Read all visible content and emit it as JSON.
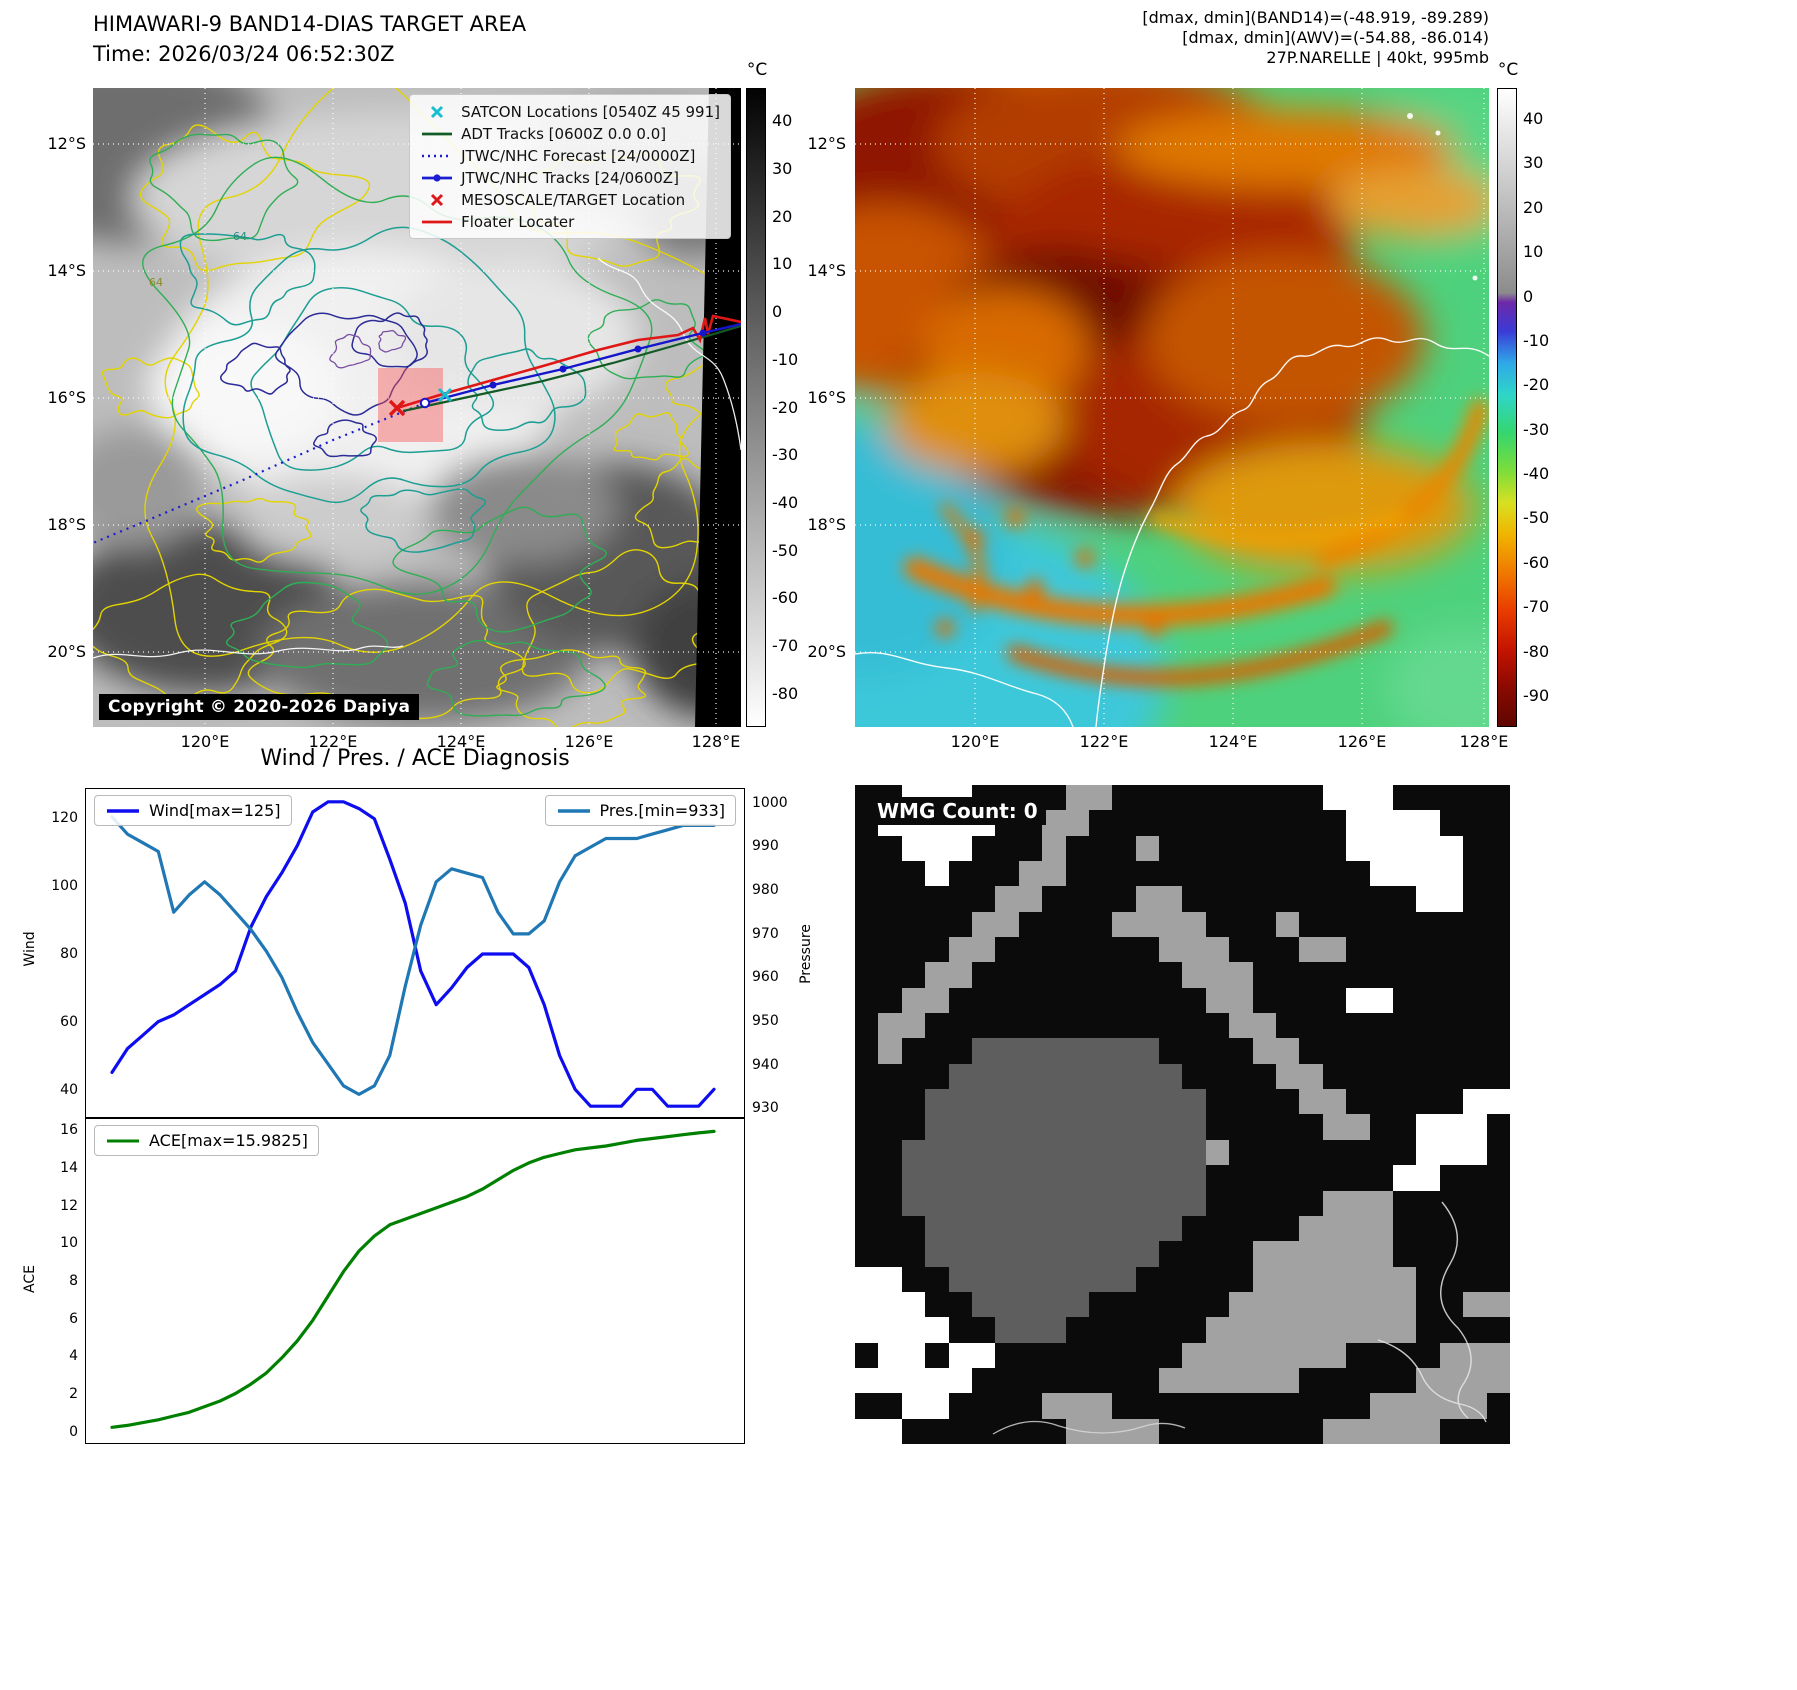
{
  "band14": {
    "title": "HIMAWARI-9 BAND14-DIAS TARGET AREA",
    "subtitle": "Time: 2026/03/24 06:52:30Z",
    "copyright": "Copyright © 2020-2026 Dapiya",
    "colorbar_unit": "°C",
    "contour_label": "64",
    "lat_labels": [
      "12°S",
      "14°S",
      "16°S",
      "18°S",
      "20°S"
    ],
    "lon_labels": [
      "120°E",
      "122°E",
      "124°E",
      "126°E",
      "128°E"
    ],
    "colorbar": {
      "ticks": [
        40,
        30,
        20,
        10,
        0,
        -10,
        -20,
        -30,
        -40,
        -50,
        -60,
        -70,
        -80
      ],
      "vmax": 47,
      "vmin": -87
    },
    "legend": [
      {
        "label": "SATCON Locations [0540Z 45 991]",
        "type": "x",
        "color": "#17becf"
      },
      {
        "label": "ADT Tracks [0600Z 0.0 0.0]",
        "type": "line",
        "color": "#145a26"
      },
      {
        "label": "JTWC/NHC Forecast [24/0000Z]",
        "type": "dotted",
        "color": "#1c1cd0"
      },
      {
        "label": "JTWC/NHC Tracks [24/0600Z]",
        "type": "line-dot",
        "color": "#1c1cd0"
      },
      {
        "label": "MESOSCALE/TARGET Location",
        "type": "x",
        "color": "#e01717"
      },
      {
        "label": "Floater Locater",
        "type": "line",
        "color": "#e01717"
      }
    ]
  },
  "awv": {
    "header_lines": [
      "[dmax, dmin](BAND14)=(-48.919, -89.289)",
      "[dmax, dmin](AWV)=(-54.88, -86.014)",
      "27P.NARELLE | 40kt, 995mb"
    ],
    "colorbar_unit": "°C",
    "lat_labels": [
      "12°S",
      "14°S",
      "16°S",
      "18°S",
      "20°S"
    ],
    "lon_labels": [
      "120°E",
      "122°E",
      "124°E",
      "126°E",
      "128°E"
    ],
    "colorbar": {
      "ticks": [
        40,
        30,
        20,
        10,
        0,
        -10,
        -20,
        -30,
        -40,
        -50,
        -60,
        -70,
        -80,
        -90
      ],
      "vmax": 47,
      "vmin": -97
    }
  },
  "diagnosis": {
    "title": "Wind / Pres. / ACE Diagnosis"
  },
  "chart_data": [
    {
      "type": "line",
      "title": "Wind / Pressure diagnosis",
      "x": "time steps (unlabeled)",
      "series": [
        {
          "name": "Wind[max=125]",
          "axis": "left",
          "color": "#0d0df0",
          "values": [
            45,
            52,
            56,
            60,
            62,
            65,
            68,
            71,
            75,
            88,
            97,
            104,
            112,
            122,
            125,
            125,
            123,
            120,
            108,
            95,
            75,
            65,
            70,
            76,
            80,
            80,
            80,
            76,
            65,
            50,
            40,
            35,
            35,
            35,
            40,
            40,
            35,
            35,
            35,
            40
          ]
        },
        {
          "name": "Pres.[min=933]",
          "axis": "right",
          "color": "#1f77b4",
          "values": [
            997,
            993,
            991,
            989,
            975,
            979,
            982,
            979,
            975,
            971,
            966,
            960,
            952,
            945,
            940,
            935,
            933,
            935,
            942,
            958,
            972,
            982,
            985,
            984,
            983,
            975,
            970,
            970,
            973,
            982,
            988,
            990,
            992,
            992,
            992,
            993,
            994,
            995,
            995,
            995
          ]
        }
      ],
      "left_axis": {
        "label": "Wind",
        "ticks": [
          40,
          60,
          80,
          100,
          120
        ],
        "range": [
          31.8,
          128.8
        ]
      },
      "right_axis": {
        "label": "Pressure",
        "ticks": [
          930,
          940,
          950,
          960,
          970,
          980,
          990,
          1000
        ],
        "range": [
          927.8,
          1003.4
        ]
      },
      "legend_position": "top-left and top-right"
    },
    {
      "type": "line",
      "title": "ACE diagnosis",
      "series": [
        {
          "name": "ACE[max=15.9825]",
          "axis": "left",
          "color": "#008000",
          "values": [
            0.2,
            0.3,
            0.45,
            0.6,
            0.8,
            1.0,
            1.3,
            1.6,
            2.0,
            2.5,
            3.1,
            3.9,
            4.8,
            5.9,
            7.2,
            8.5,
            9.6,
            10.4,
            11.0,
            11.3,
            11.6,
            11.9,
            12.2,
            12.5,
            12.9,
            13.4,
            13.9,
            14.3,
            14.6,
            14.8,
            15.0,
            15.1,
            15.2,
            15.35,
            15.5,
            15.6,
            15.7,
            15.8,
            15.9,
            15.98
          ]
        }
      ],
      "left_axis": {
        "label": "ACE",
        "ticks": [
          0,
          2,
          4,
          6,
          8,
          10,
          12,
          14,
          16
        ],
        "range": [
          -0.64,
          16.64
        ]
      },
      "legend_position": "top-left"
    }
  ],
  "wmg": {
    "label": "WMG Count: 0",
    "palette": {
      ".": "#0b0b0b",
      "g": "#a2a2a2",
      "G": "#5e5e5e",
      "w": "#ffffff"
    },
    "rows": [
      "..www....gg.........www.....",
      ".wwwww..gg...........wwww...",
      "..www...g...g........wwwww..",
      "...w...gg.............wwww..",
      "......gg....gg..........ww..",
      ".....gg....gggg...g.........",
      "....gg.......ggg...gg.......",
      "...gg.........ggg...........",
      "..gg...........gg....ww.....",
      ".gg.............gg..........",
      ".g...GGGGGGGG....gg.........",
      "....GGGGGGGGGG....gg........",
      "...GGGGGGGGGGGG....gg.....ww",
      "...GGGGGGGGGGGG.....gg..www.",
      "..GGGGGGGGGGGGGg........www.",
      "..GGGGGGGGGGGGG........ww...",
      "..GGGGGGGGGGGGG.....ggg.....",
      "...GGGGGGGGGGG.....gggg.....",
      "...GGGGGGGGGG....gggggg.....",
      "ww..GGGGGGGG.....ggggggg....",
      "www..GGGGG......gggggggg..gg",
      "wwww..GGG......ggggggggg....",
      ".ww.ww........ggggggg....ggg",
      "wwwww........gggggg.....gggg",
      "..ww....ggg...........ggggg.",
      "ww.......gggg.......ggggg..."
    ]
  }
}
